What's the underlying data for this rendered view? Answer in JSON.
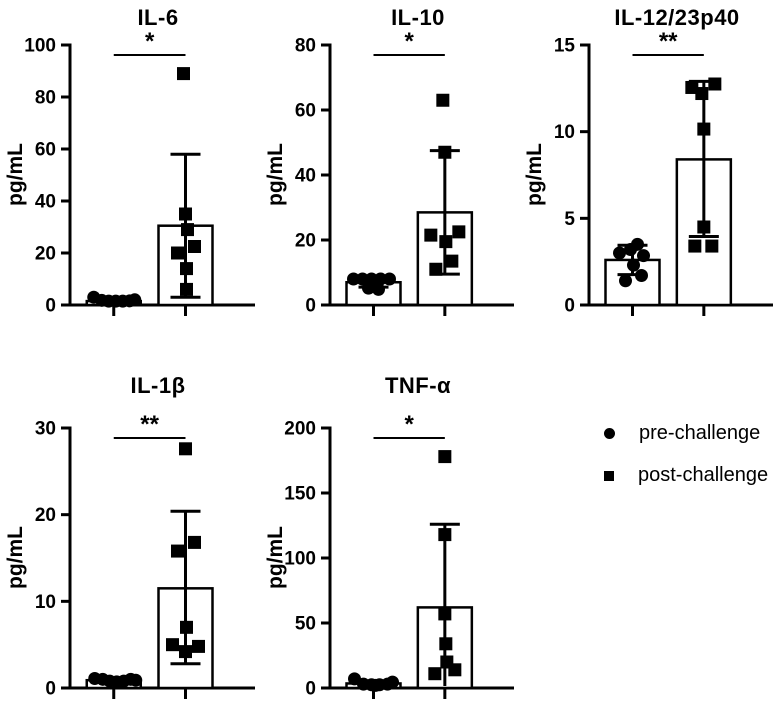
{
  "figure": {
    "background": "#ffffff",
    "ink_color": "#000000"
  },
  "legend": {
    "items": [
      {
        "label": "pre-challenge",
        "marker": "circle"
      },
      {
        "label": "post-challenge",
        "marker": "square"
      }
    ]
  },
  "chart_data": [
    {
      "type": "bar",
      "subtype": "bar-with-scatter-and-sd-error-bars",
      "title": "IL-6",
      "ylabel": "pg/mL",
      "xlabel": "",
      "ylim": [
        0,
        100
      ],
      "yticks": [
        0,
        20,
        40,
        60,
        80,
        100
      ],
      "significance": "*",
      "grid": false,
      "categories": [
        "pre-challenge",
        "post-challenge"
      ],
      "groups": [
        {
          "name": "pre-challenge",
          "marker": "circle",
          "bar_mean": 1.5,
          "error_low": null,
          "error_high": null,
          "points": [
            {
              "v": 3,
              "dx": -20
            },
            {
              "v": 1.8,
              "dx": -12
            },
            {
              "v": 1.5,
              "dx": -5
            },
            {
              "v": 1.5,
              "dx": 2
            },
            {
              "v": 1.5,
              "dx": 9
            },
            {
              "v": 1.6,
              "dx": 16
            },
            {
              "v": 2,
              "dx": 21
            }
          ]
        },
        {
          "name": "post-challenge",
          "marker": "square",
          "bar_mean": 30.5,
          "error_low": 3,
          "error_high": 58,
          "points": [
            {
              "v": 89,
              "dx": -2
            },
            {
              "v": 35,
              "dx": 0
            },
            {
              "v": 29,
              "dx": 2
            },
            {
              "v": 22.5,
              "dx": 9
            },
            {
              "v": 20,
              "dx": -8
            },
            {
              "v": 14,
              "dx": 1
            },
            {
              "v": 6,
              "dx": 1
            }
          ]
        }
      ]
    },
    {
      "type": "bar",
      "subtype": "bar-with-scatter-and-sd-error-bars",
      "title": "IL-10",
      "ylabel": "pg/mL",
      "xlabel": "",
      "ylim": [
        0,
        80
      ],
      "yticks": [
        0,
        20,
        40,
        60,
        80
      ],
      "significance": "*",
      "grid": false,
      "categories": [
        "pre-challenge",
        "post-challenge"
      ],
      "groups": [
        {
          "name": "pre-challenge",
          "marker": "circle",
          "bar_mean": 7,
          "error_low": 5.5,
          "error_high": 8.5,
          "points": [
            {
              "v": 8,
              "dx": -20
            },
            {
              "v": 8,
              "dx": -11
            },
            {
              "v": 8,
              "dx": -2
            },
            {
              "v": 8,
              "dx": 7
            },
            {
              "v": 8,
              "dx": 16
            },
            {
              "v": 5.2,
              "dx": -5
            },
            {
              "v": 4.8,
              "dx": 5
            }
          ]
        },
        {
          "name": "post-challenge",
          "marker": "square",
          "bar_mean": 28.5,
          "error_low": 9.5,
          "error_high": 47.5,
          "points": [
            {
              "v": 63,
              "dx": -2
            },
            {
              "v": 47,
              "dx": 0
            },
            {
              "v": 22.5,
              "dx": 14
            },
            {
              "v": 21.5,
              "dx": -14
            },
            {
              "v": 19.5,
              "dx": 1
            },
            {
              "v": 13.5,
              "dx": 7
            },
            {
              "v": 11,
              "dx": -9
            }
          ]
        }
      ]
    },
    {
      "type": "bar",
      "subtype": "bar-with-scatter-and-sd-error-bars",
      "title": "IL-12/23p40",
      "ylabel": "pg/mL",
      "xlabel": "",
      "ylim": [
        0,
        15
      ],
      "yticks": [
        0,
        5,
        10,
        15
      ],
      "significance": "**",
      "grid": false,
      "categories": [
        "pre-challenge",
        "post-challenge"
      ],
      "groups": [
        {
          "name": "pre-challenge",
          "marker": "circle",
          "bar_mean": 2.6,
          "error_low": 1.75,
          "error_high": 3.45,
          "points": [
            {
              "v": 3.5,
              "dx": 5
            },
            {
              "v": 3.2,
              "dx": -2
            },
            {
              "v": 3.0,
              "dx": -13
            },
            {
              "v": 2.85,
              "dx": 11
            },
            {
              "v": 2.3,
              "dx": 1
            },
            {
              "v": 1.7,
              "dx": 9
            },
            {
              "v": 1.4,
              "dx": -7
            }
          ]
        },
        {
          "name": "post-challenge",
          "marker": "square",
          "bar_mean": 8.4,
          "error_low": 3.95,
          "error_high": 12.9,
          "points": [
            {
              "v": 12.55,
              "dx": -12
            },
            {
              "v": 12.75,
              "dx": 11
            },
            {
              "v": 12.2,
              "dx": -2
            },
            {
              "v": 10.15,
              "dx": 0
            },
            {
              "v": 4.5,
              "dx": 0
            },
            {
              "v": 3.4,
              "dx": -9
            },
            {
              "v": 3.4,
              "dx": 8
            }
          ]
        }
      ]
    },
    {
      "type": "bar",
      "subtype": "bar-with-scatter-and-sd-error-bars",
      "title": "IL-1β",
      "ylabel": "pg/mL",
      "xlabel": "",
      "ylim": [
        0,
        30
      ],
      "yticks": [
        0,
        10,
        20,
        30
      ],
      "significance": "**",
      "grid": false,
      "categories": [
        "pre-challenge",
        "post-challenge"
      ],
      "groups": [
        {
          "name": "pre-challenge",
          "marker": "circle",
          "bar_mean": 0.9,
          "error_low": null,
          "error_high": null,
          "points": [
            {
              "v": 1.1,
              "dx": -19
            },
            {
              "v": 1.0,
              "dx": -11
            },
            {
              "v": 0.8,
              "dx": -4
            },
            {
              "v": 0.7,
              "dx": 3
            },
            {
              "v": 0.8,
              "dx": 10
            },
            {
              "v": 1.0,
              "dx": 17
            },
            {
              "v": 0.9,
              "dx": 22
            }
          ]
        },
        {
          "name": "post-challenge",
          "marker": "square",
          "bar_mean": 11.5,
          "error_low": 2.8,
          "error_high": 20.4,
          "points": [
            {
              "v": 27.6,
              "dx": 0
            },
            {
              "v": 16.8,
              "dx": 9
            },
            {
              "v": 15.8,
              "dx": -8
            },
            {
              "v": 7.0,
              "dx": 1
            },
            {
              "v": 5.0,
              "dx": -13
            },
            {
              "v": 4.8,
              "dx": 13
            },
            {
              "v": 4.2,
              "dx": 0
            }
          ]
        }
      ]
    },
    {
      "type": "bar",
      "subtype": "bar-with-scatter-and-sd-error-bars",
      "title": "TNF-α",
      "ylabel": "pg/mL",
      "xlabel": "",
      "ylim": [
        0,
        200
      ],
      "yticks": [
        0,
        50,
        100,
        150,
        200
      ],
      "significance": "*",
      "grid": false,
      "categories": [
        "pre-challenge",
        "post-challenge"
      ],
      "groups": [
        {
          "name": "pre-challenge",
          "marker": "circle",
          "bar_mean": 3.5,
          "error_low": null,
          "error_high": null,
          "points": [
            {
              "v": 7,
              "dx": -19
            },
            {
              "v": 3,
              "dx": -10
            },
            {
              "v": 2.5,
              "dx": -2
            },
            {
              "v": 2.5,
              "dx": 6
            },
            {
              "v": 3,
              "dx": 14
            },
            {
              "v": 2,
              "dx": 2
            },
            {
              "v": 4.5,
              "dx": 19
            }
          ]
        },
        {
          "name": "post-challenge",
          "marker": "square",
          "bar_mean": 62,
          "error_low": null,
          "error_high": 126,
          "points": [
            {
              "v": 178,
              "dx": 0
            },
            {
              "v": 118,
              "dx": 0
            },
            {
              "v": 57,
              "dx": 0
            },
            {
              "v": 34,
              "dx": 1
            },
            {
              "v": 20,
              "dx": 2
            },
            {
              "v": 14,
              "dx": 10
            },
            {
              "v": 11,
              "dx": -10
            }
          ]
        }
      ]
    }
  ]
}
